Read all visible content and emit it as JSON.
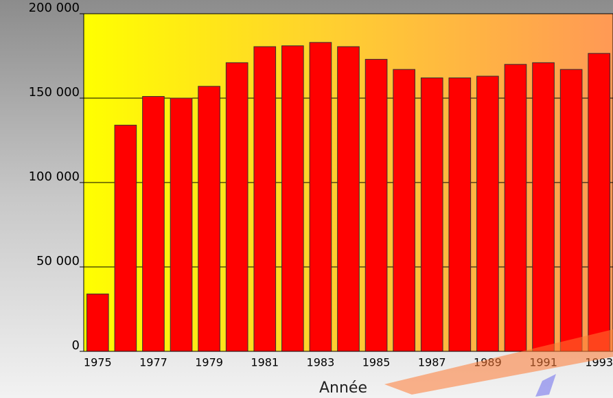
{
  "chart_data": {
    "type": "bar",
    "x_label": "Année",
    "categories": [
      "1975",
      null,
      "1977",
      null,
      "1979",
      null,
      "1981",
      null,
      "1983",
      null,
      "1985",
      null,
      "1987",
      null,
      "1989",
      null,
      "1991",
      null,
      "1993"
    ],
    "values": [
      34000,
      134000,
      151000,
      150000,
      157000,
      171000,
      180500,
      181000,
      183000,
      180500,
      173000,
      167000,
      162000,
      162000,
      163000,
      170000,
      171000,
      167000,
      176500
    ],
    "color": "#ff0000",
    "ylim": [
      0,
      200000
    ],
    "yticks": [
      0,
      {
        "value": 50000,
        "label": "50 000"
      },
      {
        "value": 100000,
        "label": "100 000"
      },
      {
        "value": 150000,
        "label": "150 000"
      },
      {
        "value": 200000,
        "label": "200 000"
      }
    ],
    "grid": true
  }
}
